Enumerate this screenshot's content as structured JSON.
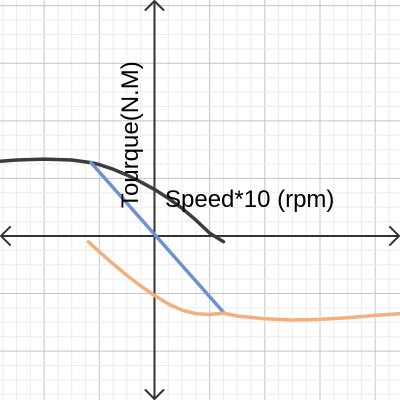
{
  "chart_data": {
    "type": "line",
    "title": "",
    "xlabel": "Speed*10 (rpm)",
    "ylabel": "Tourque(N.M)",
    "xlim": [
      -5.6,
      8.9
    ],
    "ylim": [
      -5.7,
      8.2
    ],
    "grid": true,
    "tick_labels_shown": false,
    "series": [
      {
        "color": "#3c3c3c",
        "x": [
          -5.6,
          -5,
          -4,
          -3,
          -2.3,
          -2,
          -1.5,
          -1,
          -0.5,
          0,
          0.5,
          1,
          1.5,
          2,
          2.5
        ],
        "y": [
          2.6,
          2.64,
          2.67,
          2.64,
          2.55,
          2.48,
          2.32,
          2.12,
          1.88,
          1.62,
          1.31,
          0.96,
          0.55,
          0.1,
          -0.2
        ]
      },
      {
        "color": "#6d93cf",
        "x": [
          -2.3,
          2.5
        ],
        "y": [
          2.55,
          -2.65
        ]
      },
      {
        "color": "#f3b07c",
        "x": [
          -2.4,
          -2,
          -1.5,
          -1,
          -0.5,
          0,
          0.5,
          1,
          1.5,
          2,
          2.5,
          3,
          4,
          5,
          6,
          7,
          8,
          8.9
        ],
        "y": [
          -0.2,
          -0.55,
          -0.97,
          -1.37,
          -1.74,
          -2.07,
          -2.36,
          -2.58,
          -2.7,
          -2.73,
          -2.68,
          -2.78,
          -2.88,
          -2.92,
          -2.9,
          -2.84,
          -2.76,
          -2.7
        ]
      }
    ]
  }
}
